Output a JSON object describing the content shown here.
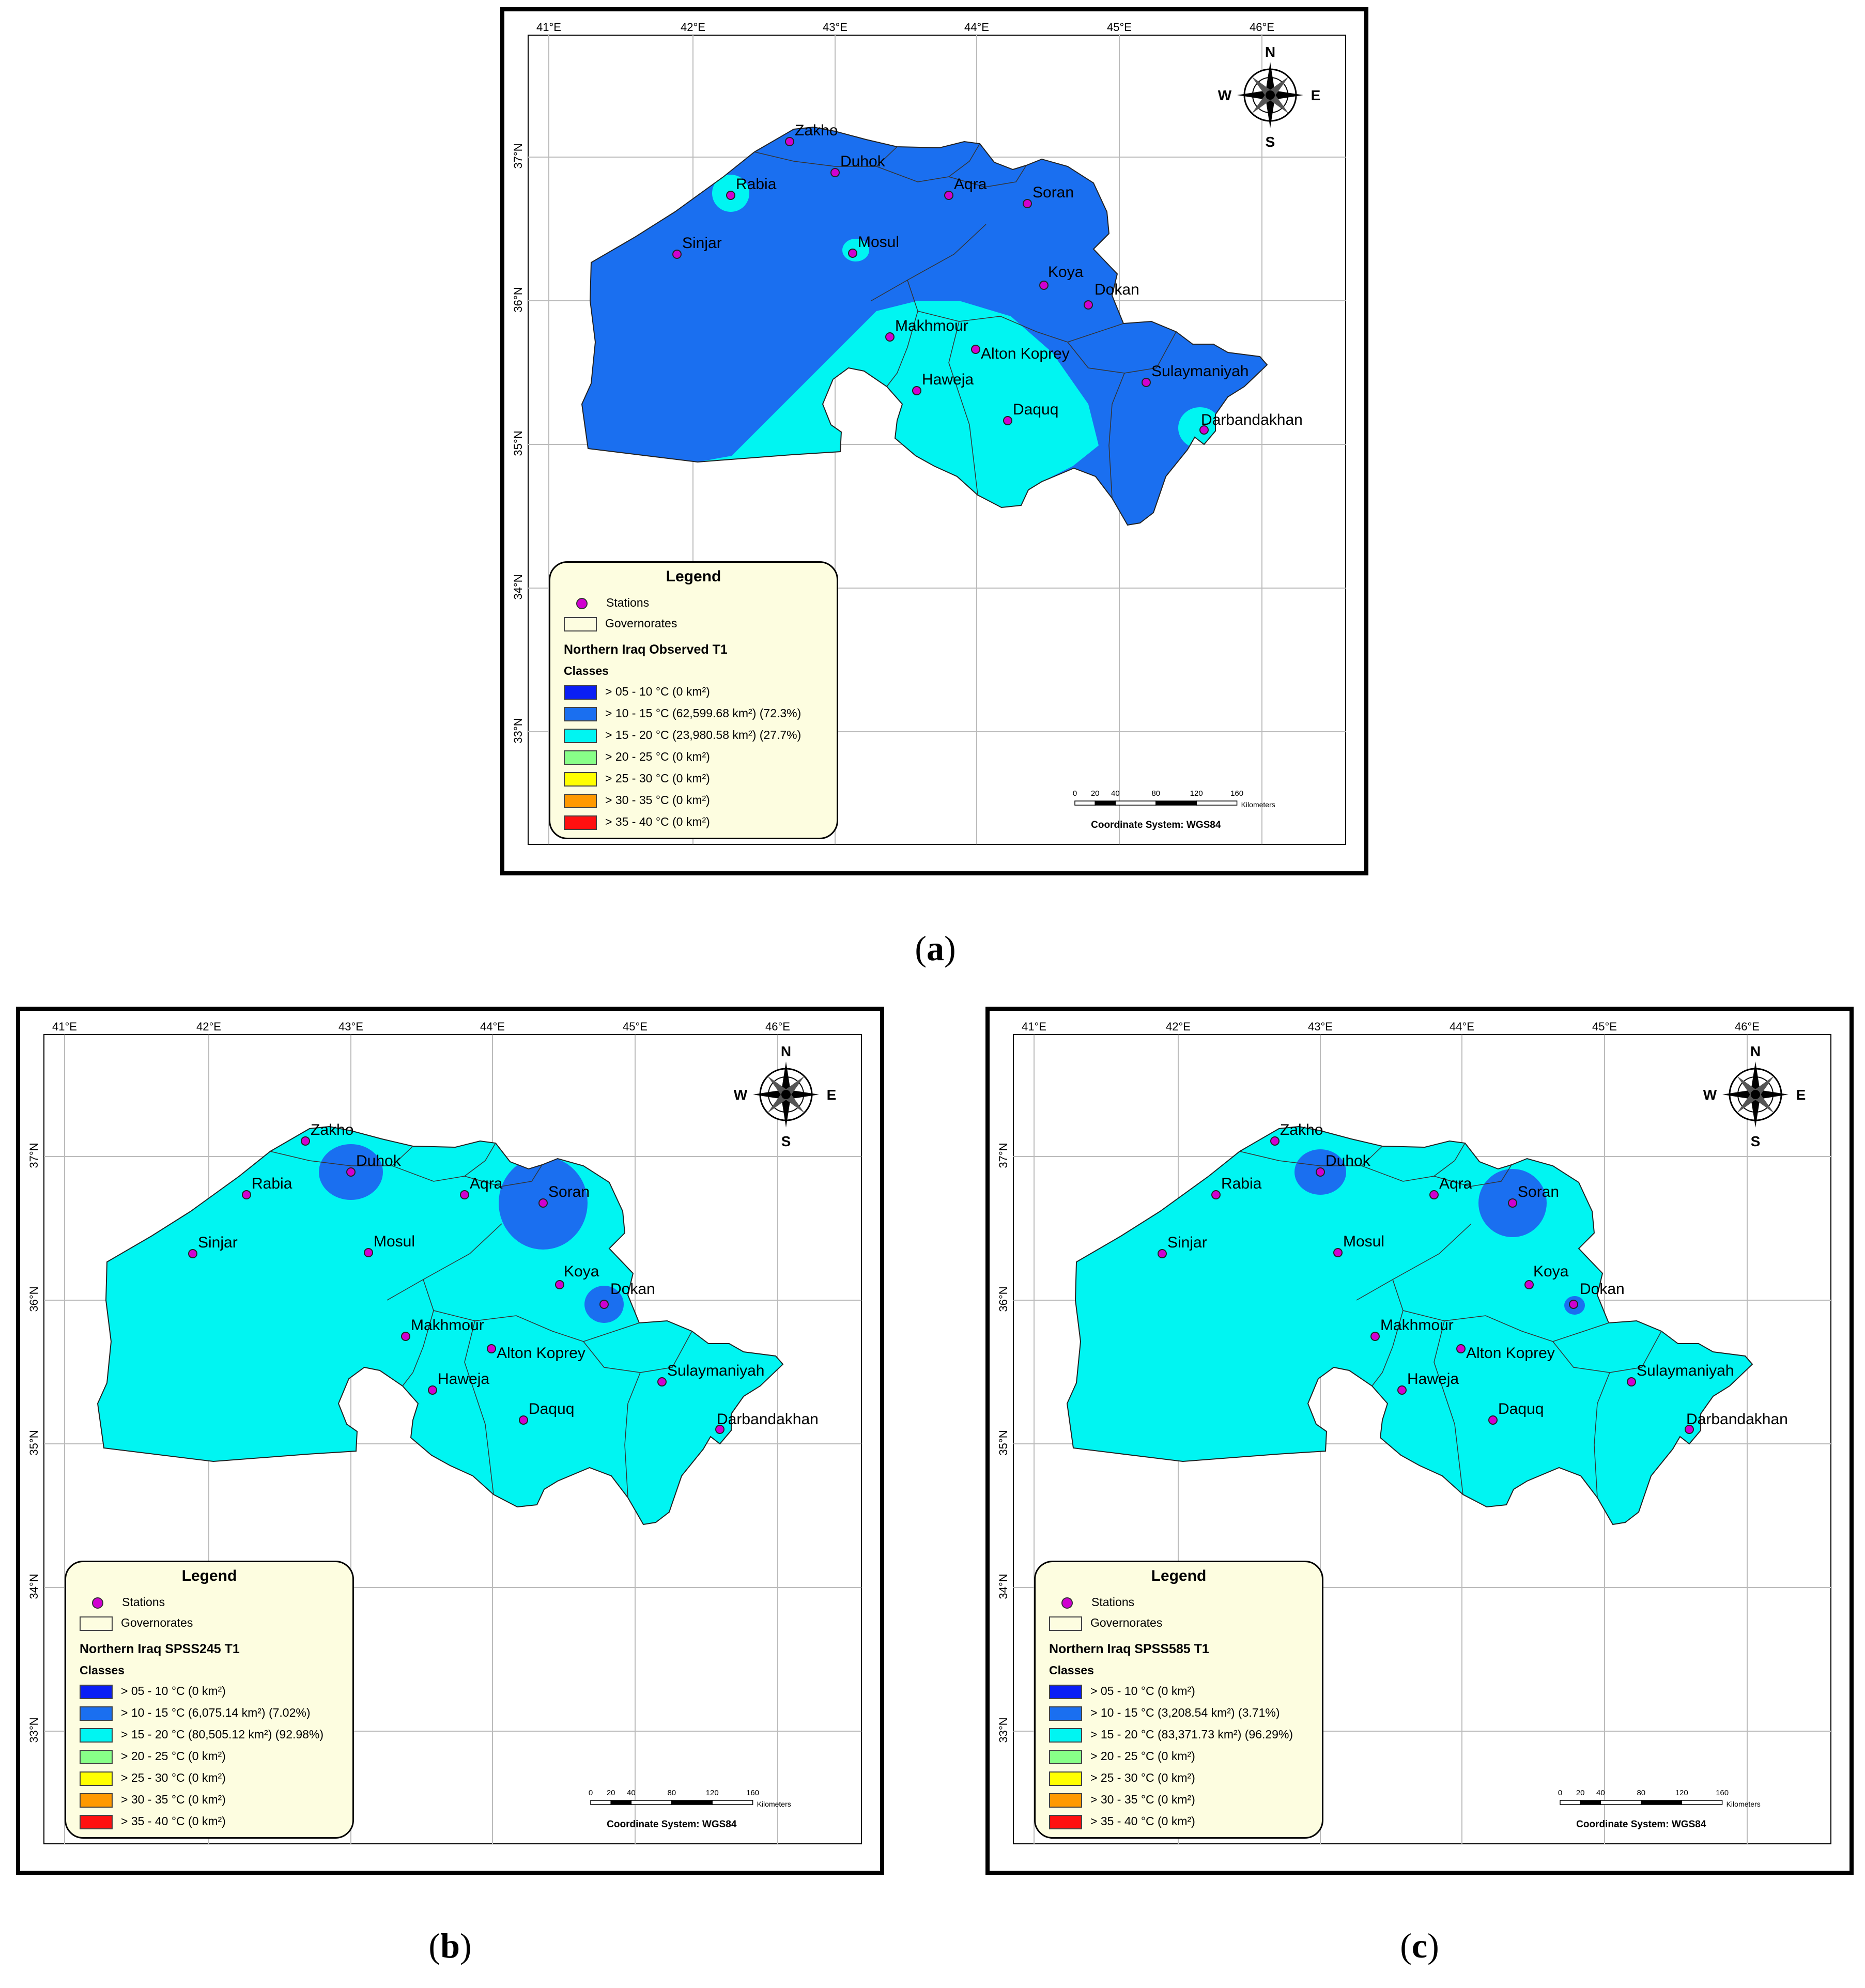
{
  "figure": {
    "panels": [
      {
        "id": "a",
        "caption_letter": "a",
        "legend_title": "Northern Iraq Observed T1",
        "dominant_class": "> 10 - 15 °C",
        "classes": [
          {
            "label": "> 05 - 10 °C (0 km²)",
            "color": "#0a1ef5"
          },
          {
            "label": "> 10 - 15 °C (62,599.68 km²) (72.3%)",
            "color": "#1a6ff0"
          },
          {
            "label": "> 15 - 20 °C (23,980.58 km²) (27.7%)",
            "color": "#00f5f2"
          },
          {
            "label": "> 20 - 25 °C (0 km²)",
            "color": "#88ff88"
          },
          {
            "label": "> 25 - 30 °C (0 km²)",
            "color": "#ffff00"
          },
          {
            "label": "> 30 - 35 °C (0 km²)",
            "color": "#ff9900"
          },
          {
            "label": "> 35 - 40 °C (0 km²)",
            "color": "#ff1010"
          }
        ]
      },
      {
        "id": "b",
        "caption_letter": "b",
        "legend_title": "Northern Iraq SPSS245 T1",
        "dominant_class": "> 15 - 20 °C",
        "classes": [
          {
            "label": "> 05 - 10 °C (0 km²)",
            "color": "#0a1ef5"
          },
          {
            "label": "> 10 - 15 °C (6,075.14 km²) (7.02%)",
            "color": "#1a6ff0"
          },
          {
            "label": "> 15 - 20 °C (80,505.12 km²) (92.98%)",
            "color": "#00f5f2"
          },
          {
            "label": "> 20 - 25 °C (0 km²)",
            "color": "#88ff88"
          },
          {
            "label": "> 25 - 30 °C (0 km²)",
            "color": "#ffff00"
          },
          {
            "label": "> 30 - 35 °C (0 km²)",
            "color": "#ff9900"
          },
          {
            "label": "> 35 - 40 °C (0 km²)",
            "color": "#ff1010"
          }
        ]
      },
      {
        "id": "c",
        "caption_letter": "c",
        "legend_title": "Northern Iraq SPSS585 T1",
        "dominant_class": "> 15 - 20 °C",
        "classes": [
          {
            "label": "> 05 - 10 °C (0 km²)",
            "color": "#0a1ef5"
          },
          {
            "label": "> 10 - 15 °C (3,208.54 km²) (3.71%)",
            "color": "#1a6ff0"
          },
          {
            "label": "> 15 - 20 °C (83,371.73 km²) (96.29%)",
            "color": "#00f5f2"
          },
          {
            "label": "> 20 - 25 °C (0 km²)",
            "color": "#88ff88"
          },
          {
            "label": "> 25 - 30 °C (0 km²)",
            "color": "#ffff00"
          },
          {
            "label": "> 30 - 35 °C (0 km²)",
            "color": "#ff9900"
          },
          {
            "label": "> 35 - 40 °C (0 km²)",
            "color": "#ff1010"
          }
        ]
      }
    ],
    "legend": {
      "title": "Legend",
      "stations_label": "Stations",
      "governorates_label": "Governorates",
      "classes_label": "Classes"
    },
    "longitude_ticks": [
      "41°E",
      "42°E",
      "43°E",
      "44°E",
      "45°E",
      "46°E"
    ],
    "latitude_ticks": [
      "37°N",
      "36°N",
      "35°N",
      "34°N",
      "33°N"
    ],
    "compass": {
      "n": "N",
      "s": "S",
      "e": "E",
      "w": "W"
    },
    "scale_bar": {
      "ticks": [
        "0",
        "20",
        "40",
        "80",
        "120",
        "160"
      ],
      "unit": "Kilometers"
    },
    "coordinate_system": "Coordinate System: WGS84",
    "stations": [
      "Zakho",
      "Duhok",
      "Rabia",
      "Aqra",
      "Soran",
      "Sinjar",
      "Mosul",
      "Koya",
      "Dokan",
      "Makhmour",
      "Alton Koprey",
      "Haweja",
      "Daquq",
      "Sulaymaniyah",
      "Darbandakhan"
    ]
  }
}
